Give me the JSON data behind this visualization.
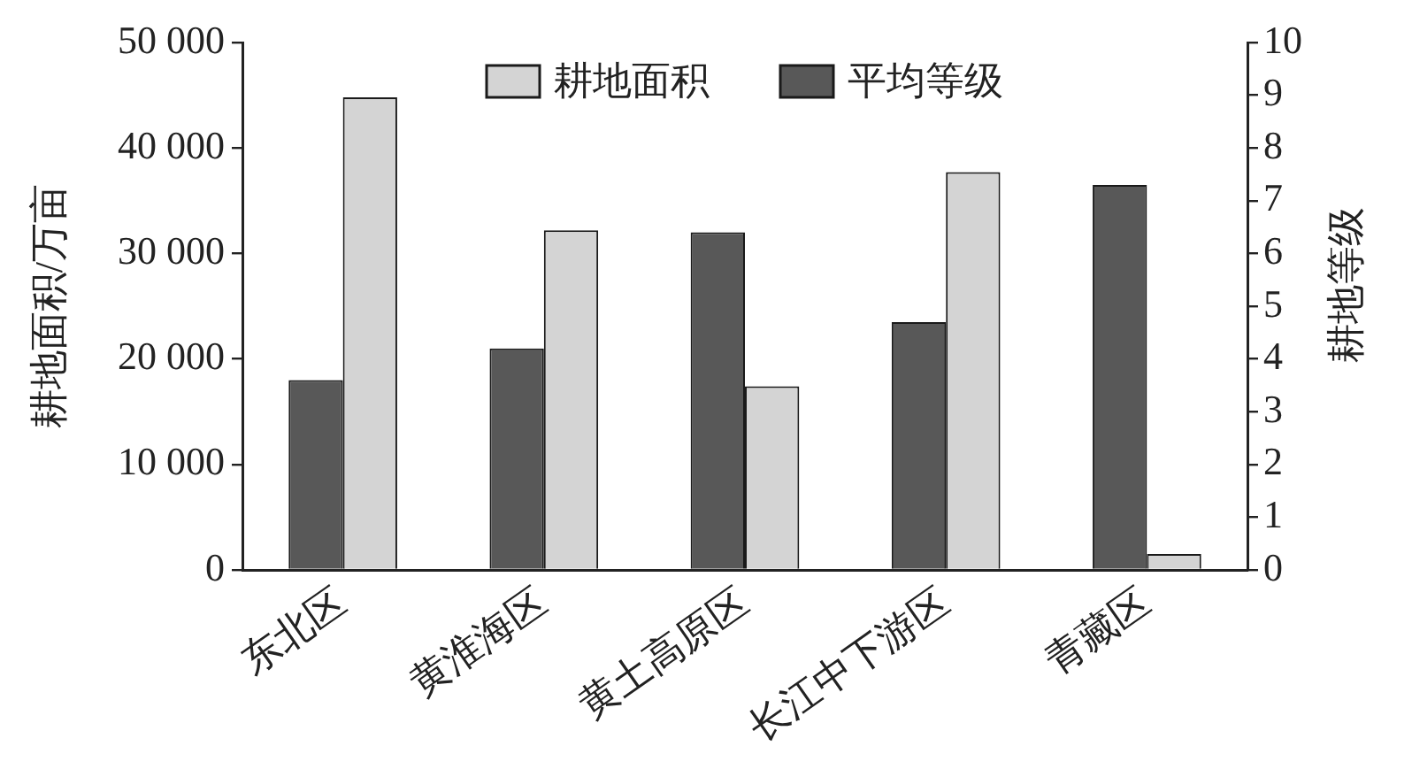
{
  "chart_data": {
    "type": "bar",
    "categories": [
      "东北区",
      "黄淮海区",
      "黄土高原区",
      "长江中下游区",
      "青藏区"
    ],
    "ylabel": "耕地面积/万亩",
    "y2label": "耕地等级",
    "series": [
      {
        "name": "耕地面积",
        "color": "#d4d4d4",
        "values": [
          44800,
          32200,
          17400,
          37700,
          1500
        ]
      },
      {
        "name": "平均等级",
        "color": "#585858",
        "axis": "y2",
        "values": [
          3.6,
          4.2,
          6.4,
          4.7,
          7.3
        ]
      }
    ],
    "ylim": [
      0,
      50000
    ],
    "yticks": [
      0,
      {
        "value": 10000,
        "label": "10 000"
      },
      {
        "value": 20000,
        "label": "20 000"
      },
      {
        "value": 30000,
        "label": "30 000"
      },
      {
        "value": 40000,
        "label": "40 000"
      },
      {
        "value": 50000,
        "label": "50 000"
      }
    ],
    "y2lim": [
      0,
      10
    ],
    "y2ticks": [
      0,
      1,
      2,
      3,
      4,
      5,
      6,
      7,
      8,
      9,
      10
    ],
    "legend": "top",
    "grid": false
  }
}
